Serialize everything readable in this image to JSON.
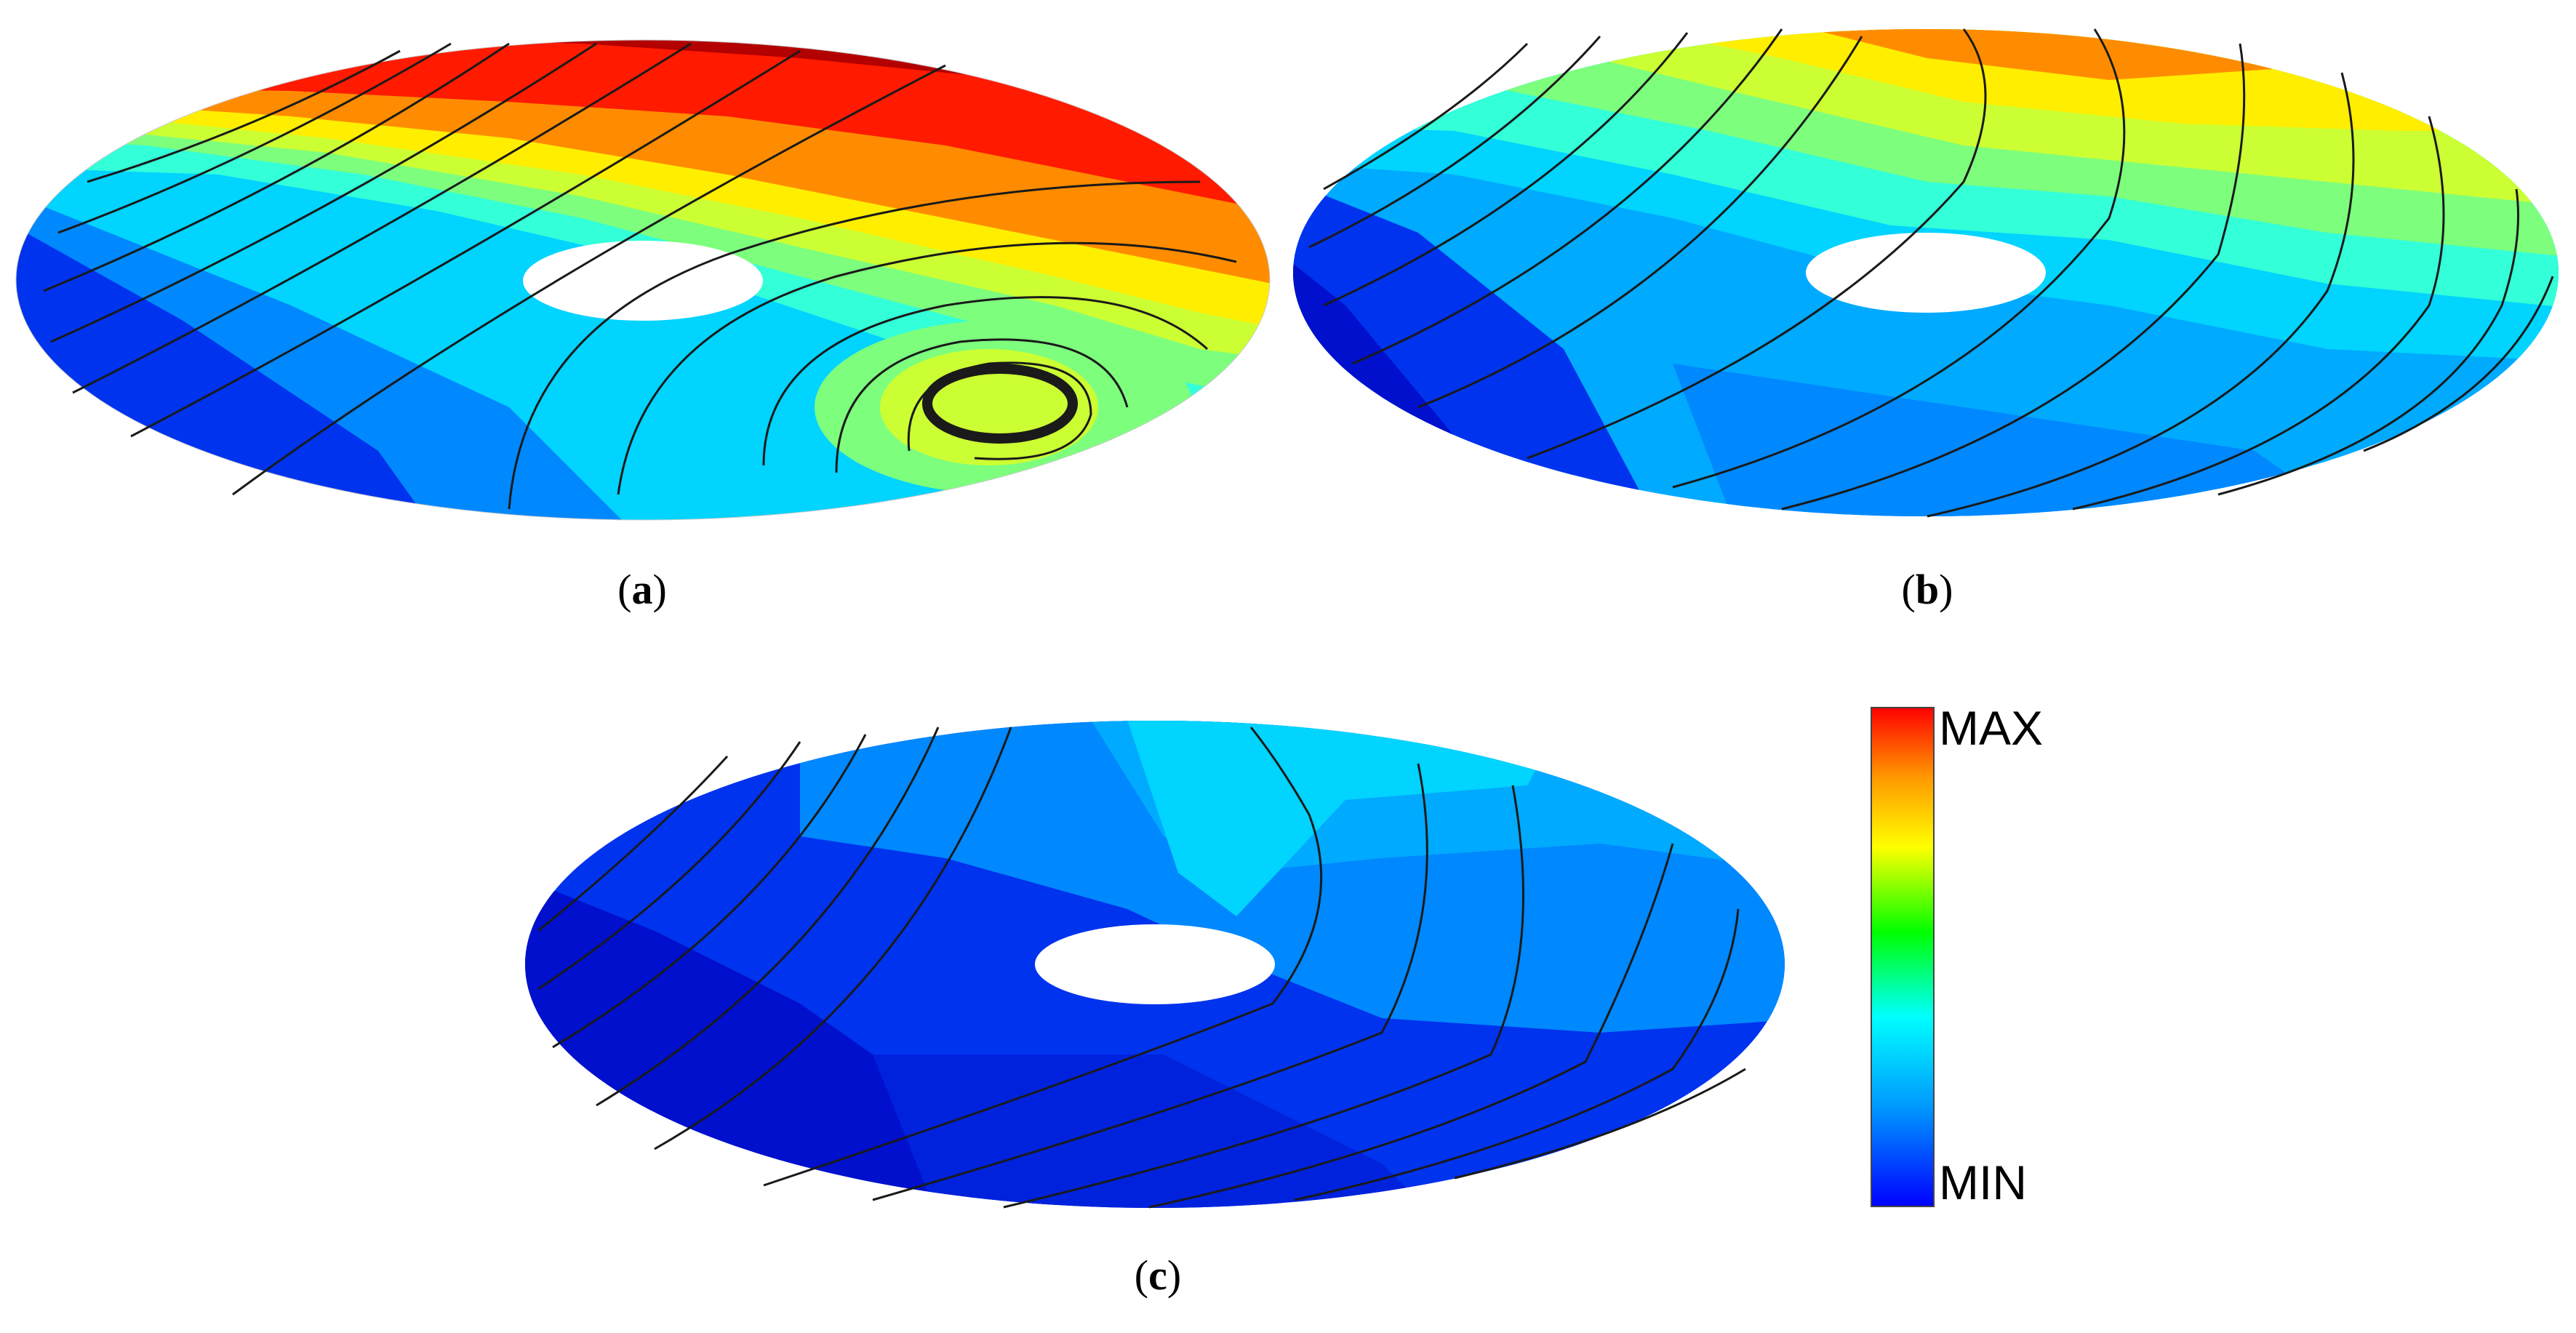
{
  "panels": [
    {
      "id": "a",
      "caption_open": "(",
      "caption_letter": "a",
      "caption_close": ")"
    },
    {
      "id": "b",
      "caption_open": "(",
      "caption_letter": "b",
      "caption_close": ")"
    },
    {
      "id": "c",
      "caption_open": "(",
      "caption_letter": "c",
      "caption_close": ")"
    }
  ],
  "colorbar": {
    "max_label": "MAX",
    "min_label": "MIN",
    "colormap": [
      "#0000ff",
      "#00aaff",
      "#00ffff",
      "#00ff00",
      "#ffff00",
      "#ff9900",
      "#ff0000"
    ]
  },
  "colors": {
    "dark_red": "#b30000",
    "red": "#ff1a00",
    "orange": "#ff8c00",
    "yellow": "#ffee00",
    "yellowgreen": "#ccff33",
    "green": "#7dff7d",
    "cyan": "#33ffd9",
    "lightblue": "#00d4ff",
    "blue": "#0088ff",
    "darkblue": "#0033ee",
    "deepblue": "#0010cc",
    "streamline": "#1a1a1a"
  }
}
